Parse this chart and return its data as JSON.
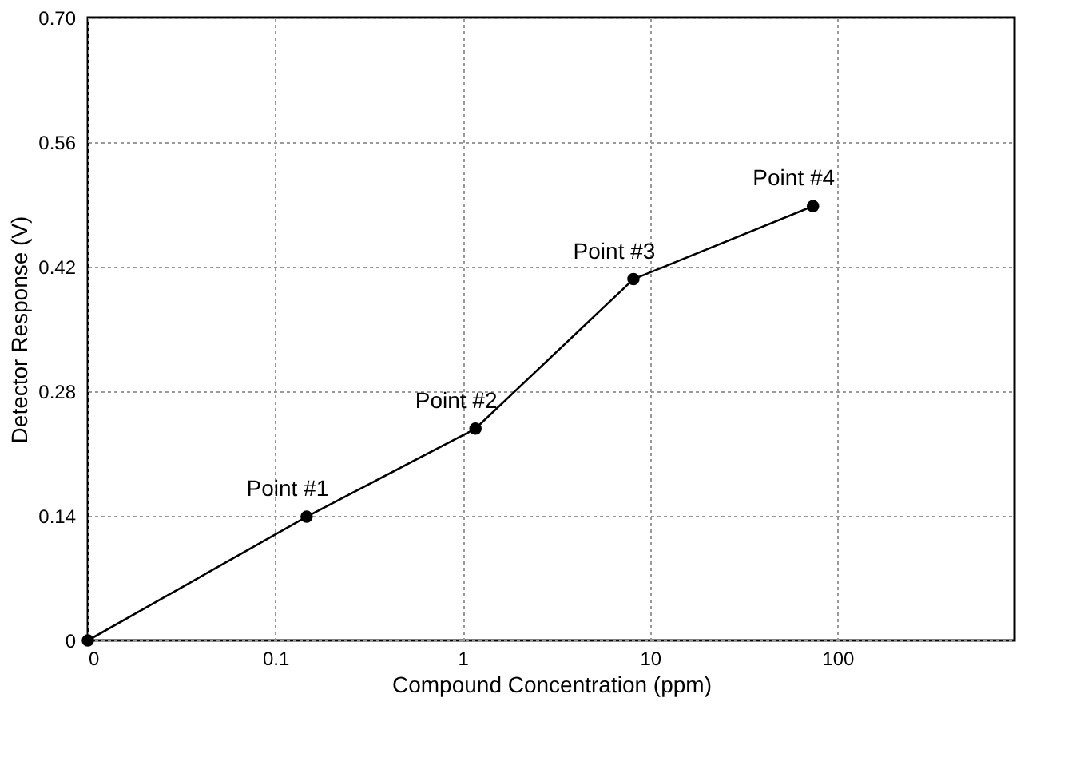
{
  "chart_data": {
    "type": "line",
    "xlabel": "Compound Concentration (ppm)",
    "ylabel": "Detector Response (V)",
    "log": "x",
    "x": [
      0.01,
      0.147,
      1.17,
      8.15,
      74
    ],
    "series": [
      {
        "color": "#000000",
        "values": [
          0,
          0.139,
          0.238,
          0.406,
          0.488
        ]
      }
    ],
    "xlim": [
      0.01,
      880
    ],
    "xticks": [
      {
        "value": 0.01,
        "label": "0"
      },
      0.1,
      1,
      10,
      100
    ],
    "ylim": [
      0,
      0.7
    ],
    "yticks": [
      {
        "value": 0,
        "label": "0"
      },
      0.14,
      0.28,
      0.42,
      0.56,
      {
        "value": 0.7,
        "label": "0.70"
      }
    ],
    "grid": true,
    "marker": "circle",
    "line_style": "solid",
    "annotations": [
      {
        "text": "Point #1",
        "x": 0.147,
        "y": 0.139
      },
      {
        "text": "Point #2",
        "x": 1.17,
        "y": 0.238
      },
      {
        "text": "Point #3",
        "x": 8.15,
        "y": 0.406
      },
      {
        "text": "Point #4",
        "x": 74,
        "y": 0.488
      }
    ]
  }
}
